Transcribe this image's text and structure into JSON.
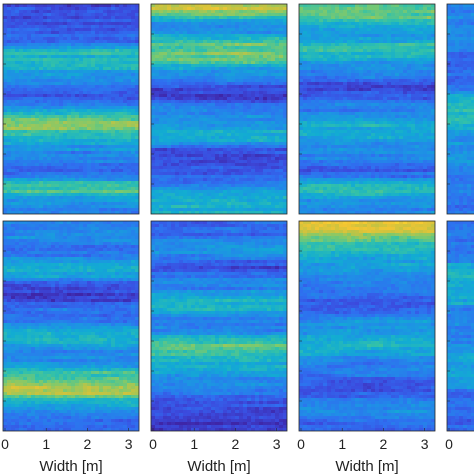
{
  "chart_data": {
    "type": "heatmap",
    "grid": {
      "rows": 2,
      "columns": 4,
      "last_column_cropped": true
    },
    "xlabel": "Width [m]",
    "xticks": [
      "0",
      "1",
      "2",
      "3"
    ],
    "xlim": [
      0,
      3.3
    ],
    "colormap": [
      "#3e26a8",
      "#3b4bde",
      "#2f6ff0",
      "#1f8fe6",
      "#12acd2",
      "#33c1a9",
      "#7cc96e",
      "#c7c340",
      "#f5c532",
      "#f9e72a"
    ],
    "panels": [
      {
        "row": 0,
        "col": 0,
        "bands": [
          {
            "y": 0.06,
            "v": 0.12
          },
          {
            "y": 0.15,
            "v": 0.18
          },
          {
            "y": 0.26,
            "v": 0.55
          },
          {
            "y": 0.34,
            "v": 0.35
          },
          {
            "y": 0.43,
            "v": 0.15
          },
          {
            "y": 0.52,
            "v": 0.38
          },
          {
            "y": 0.57,
            "v": 0.82
          },
          {
            "y": 0.64,
            "v": 0.45
          },
          {
            "y": 0.72,
            "v": 0.3
          },
          {
            "y": 0.8,
            "v": 0.2
          },
          {
            "y": 0.88,
            "v": 0.62
          },
          {
            "y": 0.95,
            "v": 0.3
          }
        ]
      },
      {
        "row": 0,
        "col": 1,
        "bands": [
          {
            "y": 0.02,
            "v": 0.78
          },
          {
            "y": 0.1,
            "v": 0.32
          },
          {
            "y": 0.2,
            "v": 0.55
          },
          {
            "y": 0.25,
            "v": 0.66
          },
          {
            "y": 0.33,
            "v": 0.35
          },
          {
            "y": 0.42,
            "v": 0.08
          },
          {
            "y": 0.52,
            "v": 0.3
          },
          {
            "y": 0.62,
            "v": 0.42
          },
          {
            "y": 0.74,
            "v": 0.1
          },
          {
            "y": 0.83,
            "v": 0.2
          },
          {
            "y": 0.92,
            "v": 0.45
          }
        ]
      },
      {
        "row": 0,
        "col": 2,
        "bands": [
          {
            "y": 0.05,
            "v": 0.62
          },
          {
            "y": 0.14,
            "v": 0.35
          },
          {
            "y": 0.22,
            "v": 0.55
          },
          {
            "y": 0.3,
            "v": 0.3
          },
          {
            "y": 0.41,
            "v": 0.12
          },
          {
            "y": 0.5,
            "v": 0.28
          },
          {
            "y": 0.6,
            "v": 0.45
          },
          {
            "y": 0.7,
            "v": 0.32
          },
          {
            "y": 0.8,
            "v": 0.15
          },
          {
            "y": 0.88,
            "v": 0.58
          },
          {
            "y": 0.95,
            "v": 0.3
          }
        ]
      },
      {
        "row": 1,
        "col": 0,
        "bands": [
          {
            "y": 0.05,
            "v": 0.3
          },
          {
            "y": 0.14,
            "v": 0.22
          },
          {
            "y": 0.22,
            "v": 0.45
          },
          {
            "y": 0.34,
            "v": 0.1
          },
          {
            "y": 0.45,
            "v": 0.25
          },
          {
            "y": 0.55,
            "v": 0.45
          },
          {
            "y": 0.65,
            "v": 0.3
          },
          {
            "y": 0.74,
            "v": 0.55
          },
          {
            "y": 0.8,
            "v": 0.78
          },
          {
            "y": 0.88,
            "v": 0.4
          },
          {
            "y": 0.95,
            "v": 0.2
          }
        ]
      },
      {
        "row": 1,
        "col": 1,
        "bands": [
          {
            "y": 0.04,
            "v": 0.2
          },
          {
            "y": 0.13,
            "v": 0.35
          },
          {
            "y": 0.22,
            "v": 0.15
          },
          {
            "y": 0.3,
            "v": 0.3
          },
          {
            "y": 0.38,
            "v": 0.45
          },
          {
            "y": 0.5,
            "v": 0.28
          },
          {
            "y": 0.6,
            "v": 0.62
          },
          {
            "y": 0.68,
            "v": 0.45
          },
          {
            "y": 0.78,
            "v": 0.3
          },
          {
            "y": 0.88,
            "v": 0.12
          },
          {
            "y": 0.96,
            "v": 0.05
          }
        ]
      },
      {
        "row": 1,
        "col": 2,
        "bands": [
          {
            "y": 0.03,
            "v": 0.85
          },
          {
            "y": 0.1,
            "v": 0.55
          },
          {
            "y": 0.2,
            "v": 0.4
          },
          {
            "y": 0.3,
            "v": 0.28
          },
          {
            "y": 0.4,
            "v": 0.15
          },
          {
            "y": 0.5,
            "v": 0.35
          },
          {
            "y": 0.6,
            "v": 0.45
          },
          {
            "y": 0.7,
            "v": 0.25
          },
          {
            "y": 0.8,
            "v": 0.15
          },
          {
            "y": 0.9,
            "v": 0.35
          },
          {
            "y": 0.97,
            "v": 0.2
          }
        ]
      },
      {
        "row": 0,
        "col": 3,
        "bands": [
          {
            "y": 0.1,
            "v": 0.3
          },
          {
            "y": 0.35,
            "v": 0.2
          },
          {
            "y": 0.5,
            "v": 0.5
          },
          {
            "y": 0.7,
            "v": 0.35
          },
          {
            "y": 0.9,
            "v": 0.25
          }
        ]
      },
      {
        "row": 1,
        "col": 3,
        "bands": [
          {
            "y": 0.1,
            "v": 0.25
          },
          {
            "y": 0.3,
            "v": 0.45
          },
          {
            "y": 0.5,
            "v": 0.3
          },
          {
            "y": 0.7,
            "v": 0.4
          },
          {
            "y": 0.9,
            "v": 0.2
          }
        ]
      }
    ]
  }
}
